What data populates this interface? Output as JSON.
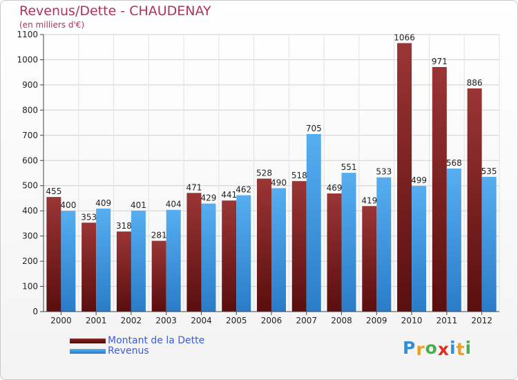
{
  "title": "Revenus/Dette - CHAUDENAY",
  "subtitle": "(en milliers d'€)",
  "logo": {
    "letters": [
      {
        "ch": "P",
        "color": "#2f8fd8"
      },
      {
        "ch": "r",
        "color": "#f0a020"
      },
      {
        "ch": "o",
        "color": "#48b048"
      },
      {
        "ch": "x",
        "color": "#e03020"
      },
      {
        "ch": "i",
        "color": "#2f8fd8"
      },
      {
        "ch": "t",
        "color": "#f0a020"
      },
      {
        "ch": "i",
        "color": "#48b048"
      }
    ]
  },
  "colors": {
    "dette": "#8b2a2a",
    "revenus": "#3b95e0",
    "text": "#222222",
    "grid": "#d0d0d0"
  },
  "chart_data": {
    "type": "bar",
    "title": "Revenus/Dette - CHAUDENAY",
    "subtitle": "(en milliers d'€)",
    "categories": [
      "2000",
      "2001",
      "2002",
      "2003",
      "2004",
      "2005",
      "2006",
      "2007",
      "2008",
      "2009",
      "2010",
      "2011",
      "2012"
    ],
    "series": [
      {
        "name": "Montant de la Dette",
        "values": [
          455,
          353,
          318,
          281,
          471,
          441,
          528,
          518,
          469,
          419,
          1066,
          971,
          886
        ]
      },
      {
        "name": "Revenus",
        "values": [
          400,
          409,
          401,
          404,
          429,
          462,
          490,
          705,
          551,
          533,
          499,
          568,
          535
        ]
      }
    ],
    "ylim": [
      0,
      1100
    ],
    "yticks": [
      0,
      100,
      200,
      300,
      400,
      500,
      600,
      700,
      800,
      900,
      1000,
      1100
    ],
    "grid": true,
    "legend": "bottom-left"
  }
}
